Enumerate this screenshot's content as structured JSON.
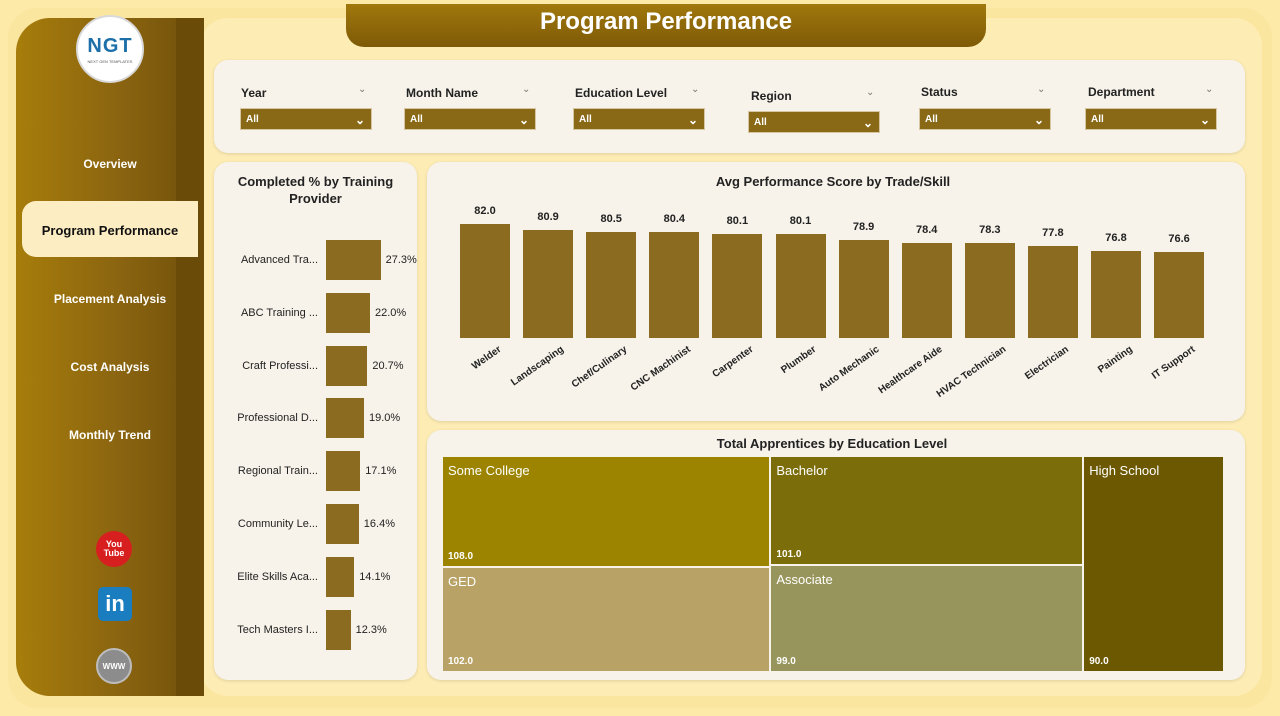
{
  "app": {
    "title": "Program Performance",
    "logo_text": "NGT",
    "logo_subtext": "NEXT GEN TEMPLATES"
  },
  "sidebar": {
    "items": [
      {
        "label": "Overview"
      },
      {
        "label": "Program Performance",
        "active": true
      },
      {
        "label": "Placement Analysis"
      },
      {
        "label": "Cost Analysis"
      },
      {
        "label": "Monthly Trend"
      }
    ],
    "social": [
      {
        "name": "youtube-icon",
        "text": "You Tube"
      },
      {
        "name": "linkedin-icon",
        "text": "in"
      },
      {
        "name": "website-icon",
        "text": "WWW"
      }
    ]
  },
  "filters": [
    {
      "label": "Year",
      "value": "All"
    },
    {
      "label": "Month Name",
      "value": "All"
    },
    {
      "label": "Education Level",
      "value": "All"
    },
    {
      "label": "Region",
      "value": "All"
    },
    {
      "label": "Status",
      "value": "All"
    },
    {
      "label": "Department",
      "value": "All"
    }
  ],
  "colors": {
    "accent": "#8a6b1f",
    "sidebar": "#8a6410",
    "background": "#fdecb4"
  },
  "chart_data": [
    {
      "type": "bar",
      "orientation": "horizontal",
      "title": "Completed % by Training Provider",
      "categories": [
        "Advanced Tra...",
        "ABC Training ...",
        "Craft Professi...",
        "Professional D...",
        "Regional Train...",
        "Community Le...",
        "Elite Skills Aca...",
        "Tech Masters I..."
      ],
      "values": [
        27.3,
        22.0,
        20.7,
        19.0,
        17.1,
        16.4,
        14.1,
        12.3
      ],
      "value_labels": [
        "27.3%",
        "22.0%",
        "20.7%",
        "19.0%",
        "17.1%",
        "16.4%",
        "14.1%",
        "12.3%"
      ],
      "xlim": [
        0,
        30
      ]
    },
    {
      "type": "bar",
      "title": "Avg Performance Score by Trade/Skill",
      "categories": [
        "Welder",
        "Landscaping",
        "Chef/Culinary",
        "CNC Machinist",
        "Carpenter",
        "Plumber",
        "Auto Mechanic",
        "Healthcare Aide",
        "HVAC Technician",
        "Electrician",
        "Painting",
        "IT Support"
      ],
      "values": [
        82.0,
        80.9,
        80.5,
        80.4,
        80.1,
        80.1,
        78.9,
        78.4,
        78.3,
        77.8,
        76.8,
        76.6
      ],
      "value_labels": [
        "82.0",
        "80.9",
        "80.5",
        "80.4",
        "80.1",
        "80.1",
        "78.9",
        "78.4",
        "78.3",
        "77.8",
        "76.8",
        "76.6"
      ],
      "ylim": [
        0,
        82
      ]
    },
    {
      "type": "treemap",
      "title": "Total Apprentices by Education Level",
      "categories": [
        "Some College",
        "GED",
        "Bachelor",
        "Associate",
        "High School"
      ],
      "values": [
        108.0,
        102.0,
        101.0,
        99.0,
        90.0
      ],
      "value_labels": [
        "108.0",
        "102.0",
        "101.0",
        "99.0",
        "90.0"
      ],
      "colors": [
        "#9c8400",
        "#b8a265",
        "#7b6d0a",
        "#98955c",
        "#6c5800"
      ]
    }
  ]
}
